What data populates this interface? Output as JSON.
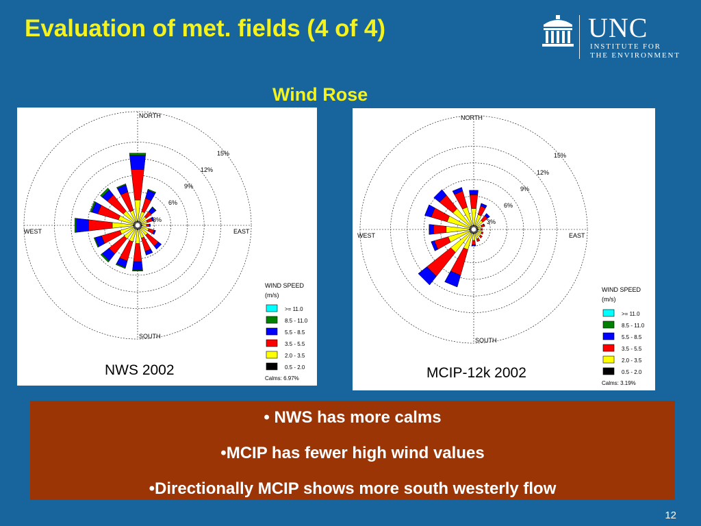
{
  "slide": {
    "title": "Evaluation of met. fields (4 of 4)",
    "subtitle": "Wind Rose",
    "page_number": "12",
    "background_color": "#17659c",
    "title_color": "#f4f21f"
  },
  "logo": {
    "name": "UNC",
    "line1": "INSTITUTE FOR",
    "line2": "THE ENVIRONMENT"
  },
  "legend_colors": {
    "c0": "#00ffff",
    "c1": "#008000",
    "c2": "#0000ff",
    "c3": "#ff0000",
    "c4": "#ffff00",
    "c5": "#000000"
  },
  "chart_data": [
    {
      "type": "wind-rose",
      "caption": "NWS 2002",
      "direction_labels": [
        "NORTH",
        "EAST",
        "SOUTH",
        "WEST"
      ],
      "ring_labels": [
        "3%",
        "6%",
        "9%",
        "12%",
        "15%"
      ],
      "legend_title": [
        "WIND SPEED",
        "(m/s)"
      ],
      "legend_entries": [
        ">= 11.0",
        "8.5 - 11.0",
        "5.5 - 8.5",
        "3.5 - 5.5",
        "2.0 - 3.5",
        "0.5 - 2.0"
      ],
      "calms": "Calms: 6.97%",
      "directions_deg": [
        0,
        22.5,
        45,
        67.5,
        90,
        112.5,
        135,
        157.5,
        180,
        202.5,
        225,
        247.5,
        270,
        292.5,
        315,
        337.5
      ],
      "frequency_pct_by_speed_class": {
        "0.5-2.0": [
          0.2,
          0.2,
          0.2,
          0.2,
          0.2,
          0.2,
          0.2,
          0.2,
          0.2,
          0.2,
          0.2,
          0.2,
          0.2,
          0.2,
          0.2,
          0.2
        ],
        "2.0-3.5": [
          3.8,
          1.8,
          1.2,
          1.0,
          0.8,
          1.3,
          1.5,
          1.6,
          2.5,
          2.3,
          2.3,
          2.5,
          3.8,
          2.8,
          2.5,
          2.0
        ],
        "3.5-5.5": [
          5.5,
          2.5,
          1.2,
          1.0,
          0.5,
          1.0,
          2.5,
          2.5,
          3.3,
          3.6,
          3.5,
          3.5,
          4.3,
          3.9,
          3.7,
          3.5
        ],
        "5.5-8.5": [
          2.6,
          1.5,
          1.0,
          0.3,
          0.2,
          0.3,
          0.7,
          0.7,
          1.5,
          1.2,
          1.6,
          1.2,
          2.2,
          1.1,
          1.2,
          1.3
        ],
        "8.5-11.0": [
          0.4,
          0.2,
          0.1,
          0,
          0,
          0,
          0,
          0,
          0.2,
          0.2,
          0.3,
          0.2,
          0.3,
          0.3,
          0.4,
          0.2
        ],
        ">=11.0": [
          0,
          0,
          0,
          0,
          0,
          0,
          0,
          0,
          0,
          0,
          0,
          0,
          0,
          0,
          0,
          0
        ]
      }
    },
    {
      "type": "wind-rose",
      "caption": "MCIP-12k 2002",
      "direction_labels": [
        "NORTH",
        "EAST",
        "SOUTH",
        "WEST"
      ],
      "ring_labels": [
        "3%",
        "6%",
        "9%",
        "12%",
        "15%"
      ],
      "legend_title": [
        "WIND SPEED",
        "(m/s)"
      ],
      "legend_entries": [
        ">= 11.0",
        "8.5 - 11.0",
        "5.5 - 8.5",
        "3.5 - 5.5",
        "2.0 - 3.5",
        "0.5 - 2.0"
      ],
      "calms": "Calms: 3.19%",
      "directions_deg": [
        0,
        22.5,
        45,
        67.5,
        90,
        112.5,
        135,
        157.5,
        180,
        202.5,
        225,
        247.5,
        270,
        292.5,
        315,
        337.5
      ],
      "frequency_pct_by_speed_class": {
        "0.5-2.0": [
          0.2,
          0.2,
          0.2,
          0.2,
          0.2,
          0.2,
          0.2,
          0.2,
          0.2,
          0.2,
          0.2,
          0.2,
          0.2,
          0.2,
          0.2,
          0.2
        ],
        "2.0-3.5": [
          3.0,
          2.0,
          1.3,
          0.7,
          0.5,
          0.7,
          0.8,
          1.0,
          1.2,
          3.0,
          4.5,
          4.0,
          4.2,
          4.2,
          4.0,
          3.4
        ],
        "3.5-5.5": [
          2.5,
          1.6,
          1.1,
          0.5,
          0.3,
          0.3,
          0.4,
          0.5,
          0.8,
          4.8,
          5.5,
          2.6,
          2.3,
          3.0,
          3.1,
          3.0
        ],
        "5.5-8.5": [
          0.8,
          0.5,
          0.5,
          0.1,
          0,
          0,
          0,
          0,
          0.2,
          2.2,
          2.0,
          0.6,
          0.8,
          1.2,
          1.3,
          0.7
        ],
        "8.5-11.0": [
          0,
          0,
          0,
          0,
          0,
          0,
          0,
          0,
          0,
          0,
          0,
          0,
          0,
          0,
          0,
          0
        ],
        ">=11.0": [
          0,
          0,
          0,
          0,
          0,
          0,
          0,
          0,
          0,
          0,
          0,
          0,
          0,
          0,
          0,
          0
        ]
      }
    }
  ],
  "notes": {
    "bullets": [
      "• NWS has more calms",
      "•MCIP has fewer high wind values",
      "•Directionally MCIP shows more south westerly flow"
    ]
  }
}
